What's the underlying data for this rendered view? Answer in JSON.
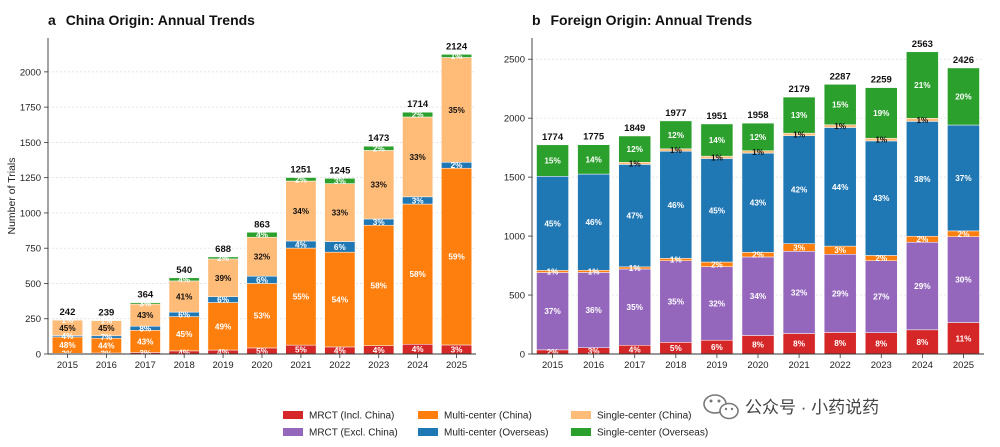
{
  "colors": {
    "mrct_incl_china": "#d62728",
    "mrct_excl_china": "#9467bd",
    "multi_center_china": "#ff7f0e",
    "multi_center_overseas": "#1f77b4",
    "single_center_china": "#ffbb78",
    "single_center_overseas": "#2ca02c"
  },
  "watermark": {
    "text": "公众号 · 小药说药",
    "icon": "wechat-icon"
  },
  "legend": {
    "items": [
      {
        "key": "mrct_incl_china",
        "label": "MRCT (Incl. China)"
      },
      {
        "key": "multi_center_china",
        "label": "Multi-center (China)"
      },
      {
        "key": "single_center_china",
        "label": "Single-center (China)"
      },
      {
        "key": "mrct_excl_china",
        "label": "MRCT (Excl. China)"
      },
      {
        "key": "multi_center_overseas",
        "label": "Multi-center (Overseas)"
      },
      {
        "key": "single_center_overseas",
        "label": "Single-center (Overseas)"
      }
    ]
  },
  "chart_data": [
    {
      "type": "bar",
      "stacked": true,
      "panel": "a",
      "title": "China Origin: Annual Trends",
      "ylabel": "Number of Trials",
      "xlabel": "",
      "ylim": [
        0,
        2240
      ],
      "yticks": [
        0,
        250,
        500,
        750,
        1000,
        1250,
        1500,
        1750,
        2000
      ],
      "grid": "y",
      "categories": [
        "2015",
        "2016",
        "2017",
        "2018",
        "2019",
        "2020",
        "2021",
        "2022",
        "2023",
        "2024",
        "2025"
      ],
      "totals": [
        242,
        239,
        364,
        540,
        688,
        863,
        1251,
        1245,
        1473,
        1714,
        2124
      ],
      "series": [
        {
          "key": "mrct_incl_china",
          "values": [
            5,
            7,
            11,
            22,
            28,
            43,
            63,
            50,
            59,
            69,
            64
          ],
          "labels": [
            "2%",
            "3%",
            "3%",
            "4%",
            "4%",
            "5%",
            "5%",
            "4%",
            "4%",
            "4%",
            "3%"
          ]
        },
        {
          "key": "multi_center_china",
          "values": [
            116,
            105,
            157,
            243,
            337,
            457,
            688,
            672,
            854,
            994,
            1253
          ],
          "labels": [
            "48%",
            "44%",
            "43%",
            "45%",
            "49%",
            "53%",
            "55%",
            "54%",
            "58%",
            "58%",
            "59%"
          ]
        },
        {
          "key": "multi_center_overseas",
          "values": [
            10,
            17,
            29,
            32,
            41,
            52,
            50,
            75,
            44,
            51,
            42
          ],
          "labels": [
            "4%",
            "7%",
            "8%",
            "6%",
            "6%",
            "6%",
            "4%",
            "6%",
            "3%",
            "3%",
            "2%"
          ]
        },
        {
          "key": "single_center_china",
          "values": [
            109,
            108,
            157,
            221,
            268,
            276,
            425,
            411,
            486,
            566,
            743
          ],
          "labels": [
            "45%",
            "45%",
            "43%",
            "41%",
            "39%",
            "32%",
            "34%",
            "33%",
            "33%",
            "33%",
            "35%"
          ]
        },
        {
          "key": "single_center_overseas",
          "values": [
            2,
            2,
            10,
            22,
            14,
            35,
            25,
            37,
            30,
            34,
            22
          ],
          "labels": [
            "1%",
            "1%",
            "3%",
            "4%",
            "2%",
            "4%",
            "2%",
            "3%",
            "2%",
            "2%",
            "1%"
          ]
        }
      ]
    },
    {
      "type": "bar",
      "stacked": true,
      "panel": "b",
      "title": "Foreign Origin: Annual Trends",
      "ylabel": "",
      "xlabel": "",
      "ylim": [
        0,
        2680
      ],
      "yticks": [
        0,
        500,
        1000,
        1500,
        2000,
        2500
      ],
      "grid": "y",
      "categories": [
        "2015",
        "2016",
        "2017",
        "2018",
        "2019",
        "2020",
        "2021",
        "2022",
        "2023",
        "2024",
        "2025"
      ],
      "totals": [
        1774,
        1775,
        1849,
        1977,
        1951,
        1958,
        2179,
        2287,
        2259,
        2563,
        2426
      ],
      "series": [
        {
          "key": "mrct_incl_china",
          "values": [
            35,
            53,
            74,
            99,
            117,
            157,
            174,
            183,
            181,
            205,
            267
          ],
          "labels": [
            "2%",
            "3%",
            "4%",
            "5%",
            "6%",
            "8%",
            "8%",
            "8%",
            "8%",
            "8%",
            "11%"
          ]
        },
        {
          "key": "mrct_excl_china",
          "values": [
            656,
            639,
            647,
            692,
            624,
            666,
            697,
            663,
            610,
            743,
            728
          ],
          "labels": [
            "37%",
            "36%",
            "35%",
            "35%",
            "32%",
            "34%",
            "32%",
            "29%",
            "27%",
            "29%",
            "30%"
          ]
        },
        {
          "key": "multi_center_china",
          "values": [
            18,
            18,
            18,
            20,
            39,
            39,
            65,
            69,
            45,
            51,
            49
          ],
          "labels": [
            "1%",
            "1%",
            "1%",
            "1%",
            "2%",
            "2%",
            "3%",
            "3%",
            "2%",
            "2%",
            "2%"
          ]
        },
        {
          "key": "multi_center_overseas",
          "values": [
            798,
            816,
            869,
            909,
            878,
            842,
            915,
            1006,
            971,
            974,
            898
          ],
          "labels": [
            "45%",
            "46%",
            "47%",
            "46%",
            "45%",
            "43%",
            "42%",
            "44%",
            "43%",
            "38%",
            "37%"
          ]
        },
        {
          "key": "single_center_china",
          "values": [
            0,
            0,
            18,
            20,
            20,
            20,
            22,
            23,
            23,
            26,
            0
          ],
          "labels": [
            "",
            "",
            "1%",
            "1%",
            "1%",
            "1%",
            "1%",
            "1%",
            "1%",
            "1%",
            ""
          ]
        },
        {
          "key": "single_center_overseas",
          "values": [
            267,
            249,
            223,
            237,
            273,
            234,
            306,
            343,
            429,
            564,
            484
          ],
          "labels": [
            "15%",
            "14%",
            "12%",
            "12%",
            "14%",
            "12%",
            "13%",
            "15%",
            "19%",
            "21%",
            "20%"
          ]
        }
      ]
    }
  ]
}
